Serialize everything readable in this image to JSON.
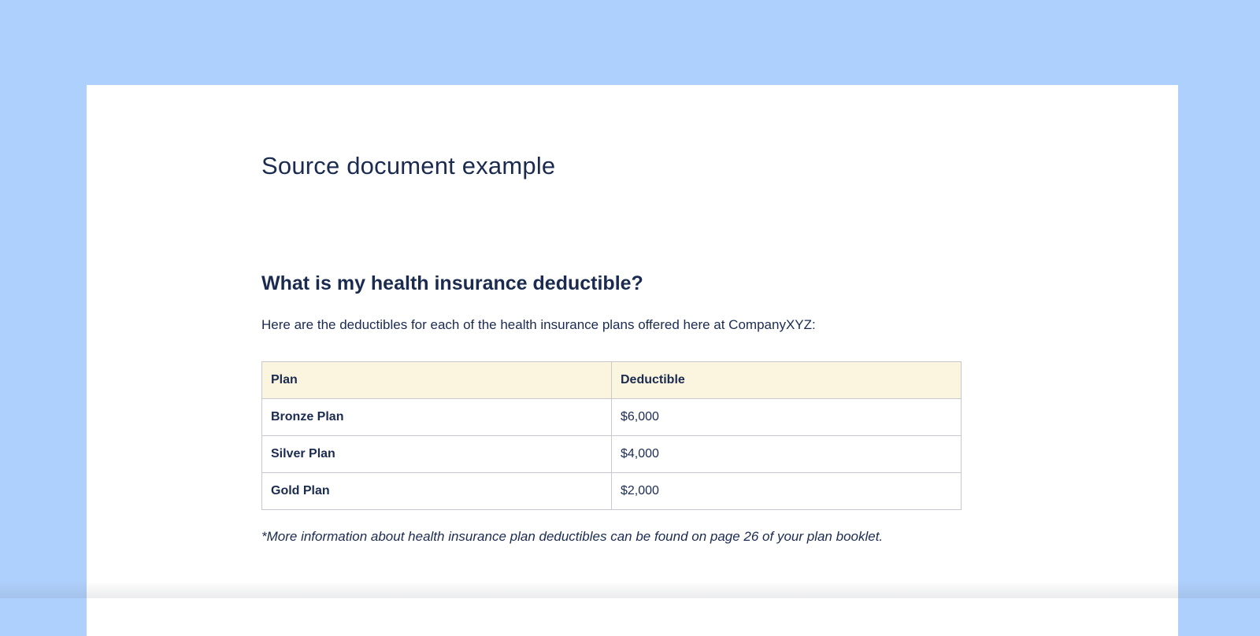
{
  "document": {
    "title": "Source document example",
    "heading": "What is my health insurance deductible?",
    "intro": "Here are the deductibles for each of the health insurance plans offered here at CompanyXYZ:",
    "footnote": "*More information about health insurance plan deductibles can be found on page 26 of your plan booklet.",
    "table": {
      "headers": [
        "Plan",
        "Deductible"
      ],
      "rows": [
        [
          "Bronze Plan",
          "$6,000"
        ],
        [
          "Silver Plan",
          "$4,000"
        ],
        [
          "Gold Plan",
          "$2,000"
        ]
      ]
    }
  },
  "colors": {
    "canvas_background": "#aed0fc",
    "page_background": "#ffffff",
    "text": "#1b2b50",
    "table_header_background": "#fbf4df",
    "table_border": "#c7c9d1"
  }
}
